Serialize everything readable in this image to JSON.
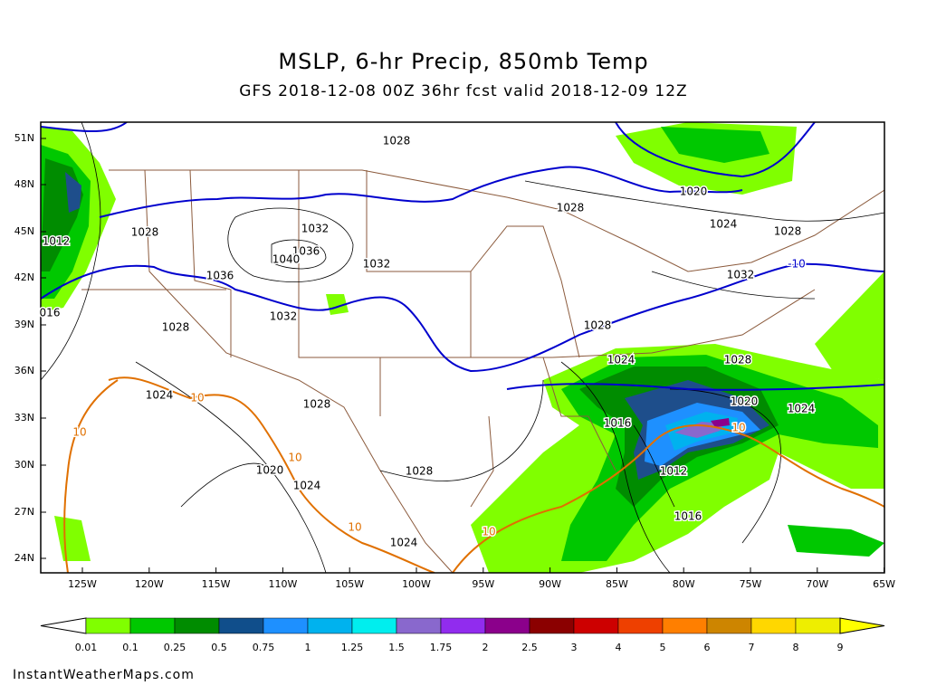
{
  "header": {
    "title": "MSLP, 6-hr Precip, 850mb Temp",
    "subtitle": "GFS 2018-12-08 00Z 36hr fcst valid 2018-12-09 12Z"
  },
  "map": {
    "lat_labels": [
      "51N",
      "48N",
      "45N",
      "42N",
      "39N",
      "36N",
      "33N",
      "30N",
      "27N",
      "24N"
    ],
    "lon_labels": [
      "125W",
      "120W",
      "115W",
      "110W",
      "105W",
      "100W",
      "95W",
      "90W",
      "85W",
      "80W",
      "75W",
      "70W",
      "65W"
    ],
    "isobar_labels": [
      "1028",
      "1028",
      "1024",
      "1028",
      "1032",
      "1036",
      "1040",
      "1032",
      "1036",
      "1028",
      "1012",
      "016",
      "1032",
      "1032",
      "1028",
      "1028",
      "1024",
      "1028",
      "1020",
      "1024",
      "1024",
      "1028",
      "1016",
      "1012",
      "1028",
      "1020",
      "1024",
      "1016",
      "1024",
      "1020"
    ],
    "temp_labels": [
      "10",
      "10",
      "10",
      "10",
      "10",
      "10",
      "-10"
    ]
  },
  "colorbar": {
    "labels": [
      "0.01",
      "0.1",
      "0.25",
      "0.5",
      "0.75",
      "1",
      "1.25",
      "1.5",
      "1.75",
      "2",
      "2.5",
      "3",
      "4",
      "5",
      "6",
      "7",
      "8",
      "9"
    ],
    "colors": [
      "#80ff00",
      "#00c800",
      "#008c00",
      "#104e8b",
      "#1e90ff",
      "#00b2ee",
      "#00eeee",
      "#8968cd",
      "#912cee",
      "#8b008b",
      "#8b0000",
      "#cd0000",
      "#ee4000",
      "#ff7f00",
      "#cd8500",
      "#ffd700",
      "#eeee00"
    ]
  },
  "footer": {
    "credit": "InstantWeatherMaps.com"
  }
}
